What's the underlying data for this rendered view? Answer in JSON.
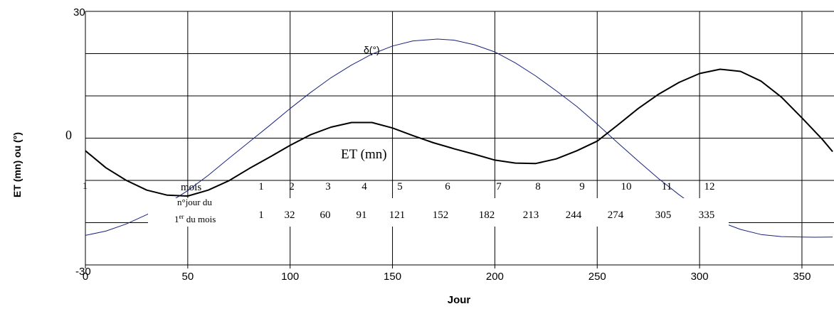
{
  "chart_data": {
    "type": "line",
    "xlabel": "Jour",
    "ylabel": "ET (mn) ou  (°)",
    "xlim": [
      0,
      365
    ],
    "ylim": [
      -30,
      30
    ],
    "x_ticks": [
      "0",
      "50",
      "100",
      "150",
      "200",
      "250",
      "300",
      "350"
    ],
    "y_tick_labels": {
      "top": "30",
      "mid": "0",
      "bottom": "-30"
    },
    "grid": true,
    "series": [
      {
        "name": "δ(°)",
        "color": "#1a237e",
        "x": [
          0,
          10,
          20,
          30,
          40,
          50,
          60,
          70,
          80,
          90,
          100,
          110,
          120,
          130,
          140,
          150,
          160,
          172,
          180,
          190,
          200,
          210,
          220,
          230,
          240,
          250,
          260,
          270,
          280,
          290,
          300,
          310,
          320,
          330,
          340,
          350,
          356,
          365
        ],
        "y": [
          -23.0,
          -22.0,
          -20.3,
          -18.1,
          -15.5,
          -12.4,
          -8.8,
          -4.8,
          -0.9,
          3.0,
          7.0,
          10.8,
          14.3,
          17.3,
          19.9,
          21.8,
          23.0,
          23.45,
          23.2,
          22.1,
          20.4,
          17.8,
          14.7,
          11.2,
          7.5,
          3.3,
          -1.1,
          -5.4,
          -9.6,
          -13.4,
          -16.9,
          -19.8,
          -21.6,
          -22.8,
          -23.3,
          -23.4,
          -23.44,
          -23.4
        ]
      },
      {
        "name": "ET (mn)",
        "color": "#000000",
        "x": [
          0,
          10,
          20,
          30,
          40,
          50,
          60,
          70,
          80,
          90,
          100,
          110,
          120,
          130,
          140,
          150,
          160,
          170,
          180,
          190,
          200,
          210,
          220,
          230,
          240,
          250,
          260,
          270,
          280,
          290,
          300,
          310,
          320,
          330,
          340,
          350,
          360,
          365
        ],
        "y": [
          -3.0,
          -7.0,
          -10.0,
          -12.3,
          -13.5,
          -13.7,
          -12.3,
          -10.1,
          -7.2,
          -4.5,
          -1.7,
          0.8,
          2.6,
          3.7,
          3.7,
          2.4,
          0.6,
          -1.1,
          -2.5,
          -3.8,
          -5.2,
          -5.9,
          -6.0,
          -4.9,
          -3.0,
          -0.7,
          3.1,
          7.0,
          10.4,
          13.2,
          15.3,
          16.3,
          15.8,
          13.5,
          9.7,
          4.8,
          -0.3,
          -3.2
        ]
      }
    ],
    "annotations": {
      "delta_label": "δ(°)",
      "et_label": "ET (mn)",
      "left_edge_label": "1"
    },
    "table": {
      "row1_label": "mois",
      "row2_label_line1": "n°jour du",
      "row2_label_line2_prefix": "1",
      "row2_label_line2_sup": "er",
      "row2_label_line2_suffix": " du mois",
      "months": [
        "1",
        "2",
        "3",
        "4",
        "5",
        "6",
        "7",
        "8",
        "9",
        "10",
        "11",
        "12"
      ],
      "first_days": [
        "1",
        "32",
        "60",
        "91",
        "121",
        "152",
        "182",
        "213",
        "244",
        "274",
        "305",
        "335"
      ]
    }
  }
}
